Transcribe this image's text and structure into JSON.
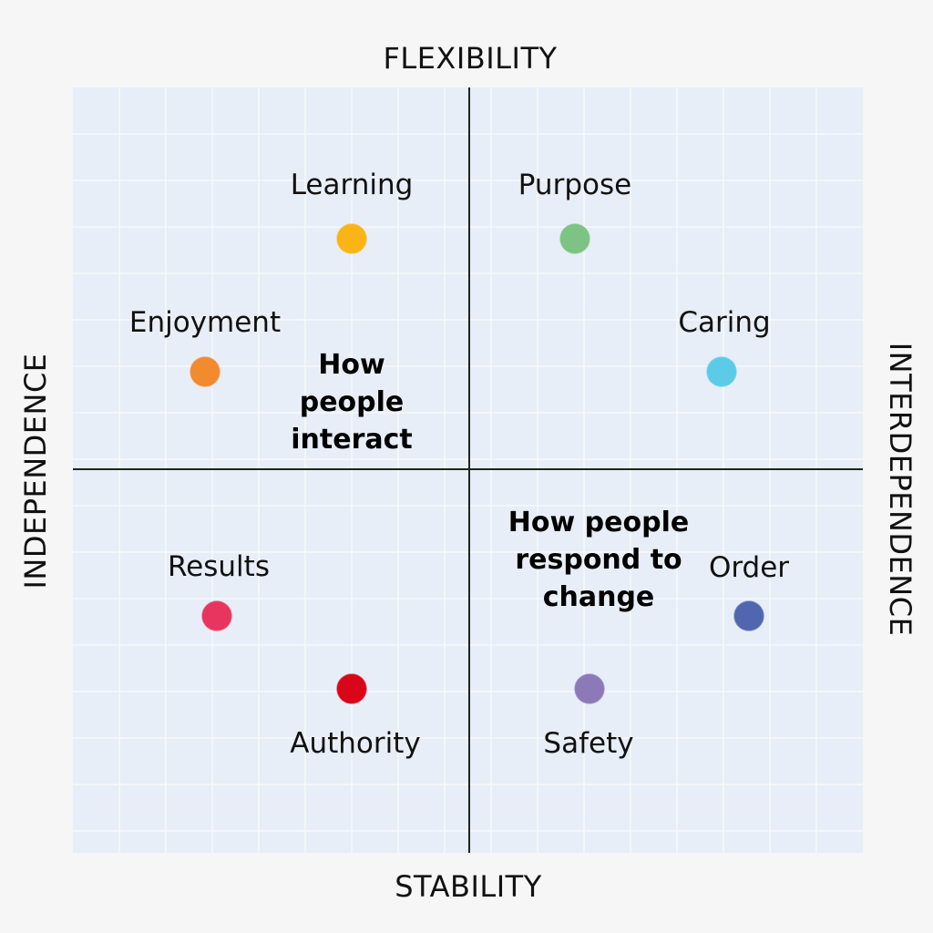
{
  "axes": {
    "top": "FLEXIBILITY",
    "bottom": "STABILITY",
    "left": "INDEPENDENCE",
    "right": "INTERDEPENDENCE"
  },
  "quadrant_labels": {
    "top_left": [
      "How",
      "people",
      "interact"
    ],
    "bottom_right": [
      "How people",
      "respond to",
      "change"
    ]
  },
  "points": [
    {
      "name": "Learning",
      "color": "#fbb416"
    },
    {
      "name": "Purpose",
      "color": "#7dc383"
    },
    {
      "name": "Enjoyment",
      "color": "#f28a2e"
    },
    {
      "name": "Caring",
      "color": "#5bcbe8"
    },
    {
      "name": "Results",
      "color": "#e7355f"
    },
    {
      "name": "Order",
      "color": "#5067b0"
    },
    {
      "name": "Authority",
      "color": "#d9061a"
    },
    {
      "name": "Safety",
      "color": "#8c7ab8"
    }
  ],
  "colors": {
    "plot_background": "#e7eef7",
    "grid_line": "#f7f9fc",
    "axis_line": "#222222"
  }
}
